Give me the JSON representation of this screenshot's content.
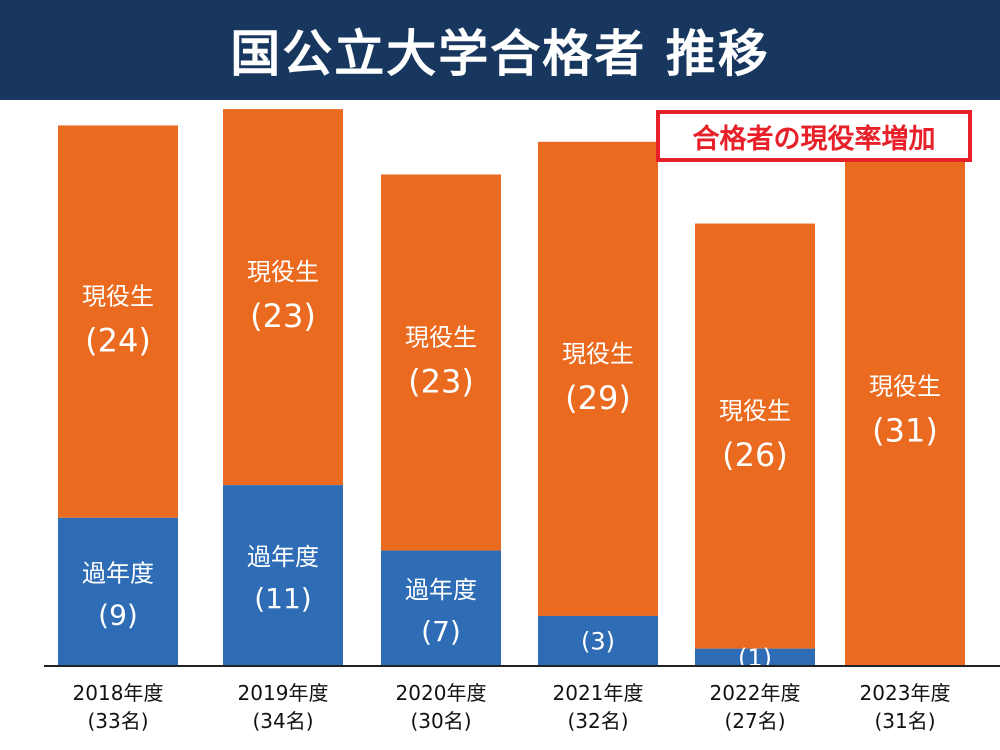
{
  "header": {
    "title": "国公立大学合格者 推移",
    "callout": "合格者の現役率増加"
  },
  "colors": {
    "header_bg": "#17375e",
    "current_students": "#ea6a1f",
    "past_years": "#2e6db5",
    "callout": "#e8202a"
  },
  "chart_data": {
    "type": "bar",
    "stacked": true,
    "title": "国公立大学合格者 推移",
    "categories": [
      "2018年度",
      "2019年度",
      "2020年度",
      "2021年度",
      "2022年度",
      "2023年度"
    ],
    "totals_labels": [
      "(33名)",
      "(34名)",
      "(30名)",
      "(32名)",
      "(27名)",
      "(31名)"
    ],
    "series": [
      {
        "name": "過年度",
        "values": [
          9,
          11,
          7,
          3,
          1,
          0
        ],
        "labels": [
          "(9)",
          "(11)",
          "(7)",
          "(3)",
          "(1)",
          ""
        ]
      },
      {
        "name": "現役生",
        "values": [
          24,
          23,
          23,
          29,
          26,
          31
        ],
        "labels": [
          "(24)",
          "(23)",
          "(23)",
          "(29)",
          "(26)",
          "(31)"
        ]
      }
    ],
    "annotation": "合格者の現役率増加"
  }
}
